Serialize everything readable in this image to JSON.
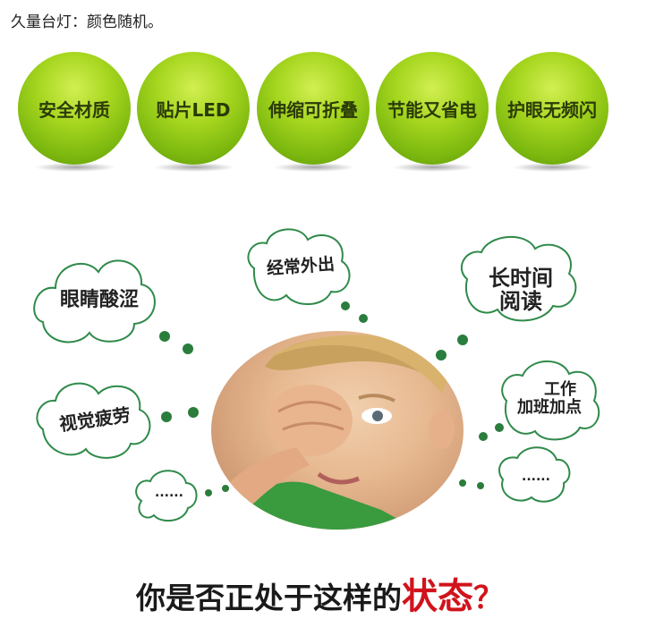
{
  "top_note": "久量台灯：颜色随机。",
  "features": [
    {
      "label": "安全材质"
    },
    {
      "label": "贴片LED"
    },
    {
      "label": "伸缩可折叠"
    },
    {
      "label": "节能又省电"
    },
    {
      "label": "护眼无频闪"
    }
  ],
  "bubbles": {
    "eyes_sore": "眼睛酸涩",
    "visual_fatigue": "视觉疲劳",
    "ellipsis_left": "......",
    "commute": "经常外出",
    "long_reading_line1": "长时间",
    "long_reading_line2": "阅读",
    "work_line1": "工作",
    "work_line2": "加班加点",
    "ellipsis_right": "......"
  },
  "headline": {
    "main": "你是否正处于这样的",
    "emphasis": "状态",
    "mark": "？"
  },
  "colors": {
    "ball_green": "#8dc71a",
    "bubble_outline": "#2f8a4a",
    "dot_green": "#2a7d3c",
    "emphasis_red": "#d1131c"
  }
}
